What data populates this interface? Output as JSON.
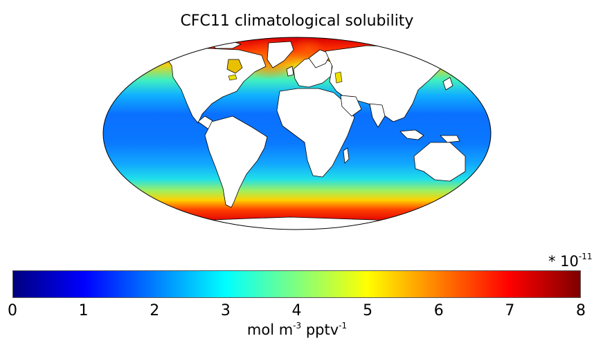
{
  "title": "CFC11 climatological solubility",
  "colorbar": {
    "min": 0,
    "max": 8,
    "ticks": [
      "0",
      "1",
      "2",
      "3",
      "4",
      "5",
      "6",
      "7",
      "8"
    ],
    "multiplier_prefix": "* 10",
    "multiplier_exponent": "-11",
    "unit_parts": [
      "mol m",
      "-3",
      " pptv",
      "-1"
    ],
    "colormap": "jet",
    "stops": [
      "#00007f",
      "#0000ff",
      "#007fff",
      "#00ffff",
      "#7fff7f",
      "#ffff00",
      "#ff7f00",
      "#ff0000",
      "#7f0000"
    ]
  },
  "map": {
    "projection": "Mollweide",
    "field": "CFC11 solubility",
    "ocean_levels": {
      "arctic": 7.6,
      "north_high_lat": 5.5,
      "north_mid_lat": 3.3,
      "tropics": 1.6,
      "south_mid_lat": 2.8,
      "south_subpolar": 5.0,
      "southern_ocean": 7.2
    },
    "ocean_colors": {
      "arctic": "#e00000",
      "north_high_lat": "#f0c020",
      "north_mid_lat": "#30e8e0",
      "tropics": "#0a7cff",
      "south_mid_lat": "#19d0f0",
      "south_subpolar": "#f8f000",
      "southern_ocean": "#ff2000"
    }
  }
}
